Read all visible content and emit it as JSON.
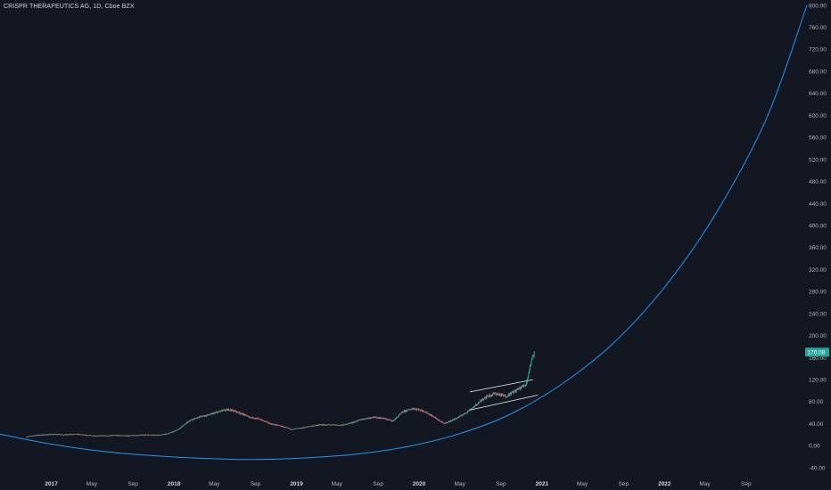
{
  "header": {
    "title": "CRISPR THERAPEUTICS AG, 1D, Cboe BZX"
  },
  "price_badge": {
    "label": "170.08",
    "color": "#26a69a"
  },
  "colors": {
    "background": "#131722",
    "up": "#26a69a",
    "down": "#ef5350",
    "curve": "#2196f3",
    "trendline": "#d1d4dc"
  },
  "chart_data": {
    "type": "candlestick",
    "title": "CRISPR THERAPEUTICS AG, 1D, Cboe BZX",
    "y_ticks": [
      800,
      760,
      720,
      680,
      640,
      600,
      560,
      520,
      480,
      440,
      400,
      360,
      320,
      280,
      240,
      200,
      160,
      120,
      80,
      40,
      0,
      -40
    ],
    "y_tick_labels": [
      "800.00",
      "760.00",
      "720.00",
      "680.00",
      "640.00",
      "600.00",
      "560.00",
      "520.00",
      "480.00",
      "440.00",
      "400.00",
      "360.00",
      "320.00",
      "280.00",
      "240.00",
      "200.00",
      "160.00",
      "120.00",
      "80.00",
      "40.00",
      "0.00",
      "-40.00"
    ],
    "ylim": [
      -48,
      800
    ],
    "xlim": [
      "2016-08-01",
      "2023-03-01"
    ],
    "x_ticks": [
      {
        "date": "2017-01-01",
        "label": "2017",
        "year": true
      },
      {
        "date": "2017-05-01",
        "label": "May",
        "year": false
      },
      {
        "date": "2017-09-01",
        "label": "Sep",
        "year": false
      },
      {
        "date": "2018-01-01",
        "label": "2018",
        "year": true
      },
      {
        "date": "2018-05-01",
        "label": "May",
        "year": false
      },
      {
        "date": "2018-09-01",
        "label": "Sep",
        "year": false
      },
      {
        "date": "2019-01-01",
        "label": "2019",
        "year": true
      },
      {
        "date": "2019-05-01",
        "label": "May",
        "year": false
      },
      {
        "date": "2019-09-01",
        "label": "Sep",
        "year": false
      },
      {
        "date": "2020-01-01",
        "label": "2020",
        "year": true
      },
      {
        "date": "2020-05-01",
        "label": "May",
        "year": false
      },
      {
        "date": "2020-09-01",
        "label": "Sep",
        "year": false
      },
      {
        "date": "2021-01-01",
        "label": "2021",
        "year": true
      },
      {
        "date": "2021-05-01",
        "label": "May",
        "year": false
      },
      {
        "date": "2021-09-01",
        "label": "Sep",
        "year": false
      },
      {
        "date": "2022-01-01",
        "label": "2022",
        "year": true
      },
      {
        "date": "2022-05-01",
        "label": "May",
        "year": false
      },
      {
        "date": "2022-09-01",
        "label": "Sep",
        "year": false
      }
    ],
    "series": [
      {
        "kind": "price",
        "points": [
          [
            "2016-10-19",
            16
          ],
          [
            "2016-11-15",
            19
          ],
          [
            "2016-12-15",
            20
          ],
          [
            "2017-01-15",
            21
          ],
          [
            "2017-02-15",
            20
          ],
          [
            "2017-03-15",
            21
          ],
          [
            "2017-04-15",
            19
          ],
          [
            "2017-05-15",
            18
          ],
          [
            "2017-06-15",
            18
          ],
          [
            "2017-07-15",
            19
          ],
          [
            "2017-08-15",
            18
          ],
          [
            "2017-09-15",
            19
          ],
          [
            "2017-10-15",
            20
          ],
          [
            "2017-11-15",
            19
          ],
          [
            "2017-12-15",
            22
          ],
          [
            "2018-01-15",
            30
          ],
          [
            "2018-02-15",
            45
          ],
          [
            "2018-03-15",
            52
          ],
          [
            "2018-04-15",
            56
          ],
          [
            "2018-05-15",
            62
          ],
          [
            "2018-06-15",
            66
          ],
          [
            "2018-07-15",
            60
          ],
          [
            "2018-08-15",
            52
          ],
          [
            "2018-09-15",
            48
          ],
          [
            "2018-10-15",
            40
          ],
          [
            "2018-11-15",
            36
          ],
          [
            "2018-12-15",
            30
          ],
          [
            "2019-01-15",
            32
          ],
          [
            "2019-02-15",
            36
          ],
          [
            "2019-03-15",
            38
          ],
          [
            "2019-04-15",
            38
          ],
          [
            "2019-05-15",
            37
          ],
          [
            "2019-06-15",
            42
          ],
          [
            "2019-07-15",
            48
          ],
          [
            "2019-08-15",
            52
          ],
          [
            "2019-09-15",
            50
          ],
          [
            "2019-10-15",
            45
          ],
          [
            "2019-11-15",
            62
          ],
          [
            "2019-12-15",
            68
          ],
          [
            "2020-01-15",
            63
          ],
          [
            "2020-02-15",
            52
          ],
          [
            "2020-03-15",
            40
          ],
          [
            "2020-04-15",
            48
          ],
          [
            "2020-05-15",
            58
          ],
          [
            "2020-06-15",
            72
          ],
          [
            "2020-07-15",
            88
          ],
          [
            "2020-08-15",
            95
          ],
          [
            "2020-09-15",
            90
          ],
          [
            "2020-10-15",
            100
          ],
          [
            "2020-11-15",
            112
          ],
          [
            "2020-11-25",
            140
          ],
          [
            "2020-12-05",
            165
          ],
          [
            "2020-12-10",
            170
          ]
        ]
      },
      {
        "kind": "curve",
        "name": "",
        "points": [
          [
            "2016-08-01",
            21
          ],
          [
            "2017-01-01",
            3
          ],
          [
            "2017-06-01",
            -10
          ],
          [
            "2017-11-01",
            -18
          ],
          [
            "2018-04-01",
            -23
          ],
          [
            "2018-09-01",
            -25
          ],
          [
            "2019-02-01",
            -22
          ],
          [
            "2019-07-01",
            -15
          ],
          [
            "2019-12-01",
            -1
          ],
          [
            "2020-05-01",
            22
          ],
          [
            "2020-10-01",
            58
          ],
          [
            "2021-03-01",
            112
          ],
          [
            "2021-08-01",
            186
          ],
          [
            "2022-01-01",
            288
          ],
          [
            "2022-06-01",
            420
          ],
          [
            "2022-11-01",
            595
          ],
          [
            "2023-03-01",
            800
          ]
        ]
      },
      {
        "kind": "channel-upper",
        "points": [
          [
            "2020-06-01",
            98
          ],
          [
            "2020-12-05",
            120
          ]
        ]
      },
      {
        "kind": "channel-lower",
        "points": [
          [
            "2020-06-01",
            65
          ],
          [
            "2020-12-20",
            92
          ]
        ]
      }
    ]
  }
}
